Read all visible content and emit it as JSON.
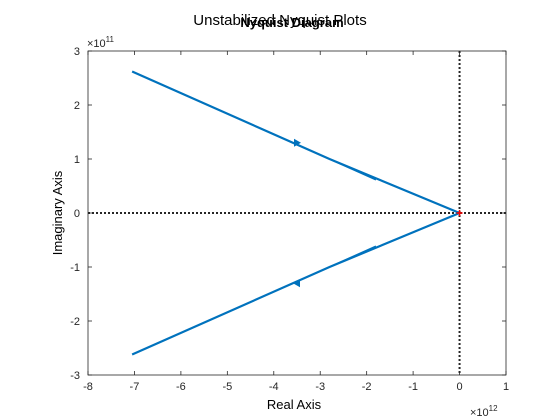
{
  "chart_data": {
    "type": "line",
    "title": "Unstabilized Nyquist Plots",
    "subtitle": "Nyquist Diagram",
    "xlabel": "Real Axis",
    "ylabel": "Imaginary Axis",
    "x_multiplier": {
      "base": "×10",
      "exp": "12"
    },
    "y_multiplier": {
      "base": "×10",
      "exp": "11"
    },
    "xlim": [
      -8,
      1
    ],
    "ylim": [
      -3,
      3
    ],
    "x_ticks": [
      -8,
      -7,
      -6,
      -5,
      -4,
      -3,
      -2,
      -1,
      0,
      1
    ],
    "y_ticks": [
      -3,
      -2,
      -1,
      0,
      1,
      2,
      3
    ],
    "x_tick_labels": [
      "-8",
      "-7",
      "-6",
      "-5",
      "-4",
      "-3",
      "-2",
      "-1",
      "0",
      "1"
    ],
    "y_tick_labels": [
      "-3",
      "-2",
      "-1",
      "0",
      "1",
      "2",
      "3"
    ],
    "grid": false,
    "series": [
      {
        "color": "#0072BD",
        "x": [
          0,
          -2.8,
          -7.05
        ],
        "y": [
          0,
          1.0,
          2.62
        ]
      },
      {
        "color": "#0072BD",
        "x": [
          0,
          -2.8,
          -7.05
        ],
        "y": [
          0,
          -1.0,
          -2.62
        ]
      }
    ],
    "arrows": [
      {
        "x": -3.5,
        "y": 1.3,
        "dir": "right"
      },
      {
        "x": -3.5,
        "y": -1.3,
        "dir": "left"
      }
    ],
    "critical_point": {
      "x": 0,
      "y": 0,
      "color": "#FF0000"
    },
    "reference_lines": [
      {
        "orientation": "horizontal",
        "value": 0
      },
      {
        "orientation": "vertical",
        "value": 0
      }
    ]
  }
}
